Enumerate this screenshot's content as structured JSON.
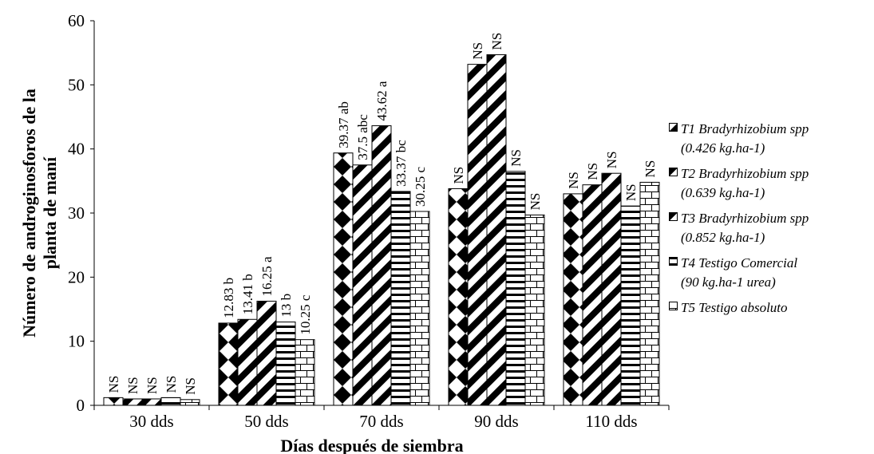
{
  "chart_data": {
    "type": "bar",
    "title": "",
    "xlabel": "Días después de siembra",
    "ylabel_lines": [
      "Número de androginosforos de la",
      "planta de maní"
    ],
    "ylim": [
      0,
      60
    ],
    "yticks": [
      "0",
      "10",
      "20",
      "30",
      "40",
      "50",
      "60"
    ],
    "categories": [
      "30 dds",
      "50 dds",
      "70 dds",
      "90 dds",
      "110 dds"
    ],
    "legend_position": "right",
    "series": [
      {
        "name_lines": [
          "T1 Bradyrhizobium spp",
          "(0.426 kg.ha-1)"
        ],
        "pattern": "diamonds",
        "values": [
          1.2,
          12.83,
          39.37,
          33.8,
          33.0
        ],
        "labels": [
          "NS",
          "12.83 b",
          "39.37 ab",
          "NS",
          "NS"
        ]
      },
      {
        "name_lines": [
          "T2 Bradyrhizobium spp",
          "(0.639 kg.ha-1)"
        ],
        "pattern": "wide-diag",
        "values": [
          1.0,
          13.41,
          37.5,
          53.2,
          34.4
        ],
        "labels": [
          "NS",
          "13.41 b",
          "37.5 abc",
          "NS",
          "NS"
        ]
      },
      {
        "name_lines": [
          "T3 Bradyrhizobium spp",
          "(0.852 kg.ha-1)"
        ],
        "pattern": "wide-diag",
        "values": [
          1.0,
          16.25,
          43.62,
          54.7,
          36.2
        ],
        "labels": [
          "NS",
          "16.25 a",
          "43.62 a",
          "NS",
          "NS"
        ]
      },
      {
        "name_lines": [
          "T4 Testigo Comercial",
          "(90 kg.ha-1 urea)"
        ],
        "pattern": "horizontal",
        "values": [
          1.2,
          13.0,
          33.37,
          36.5,
          31.1
        ],
        "labels": [
          "NS",
          "13 b",
          "33.37 bc",
          "NS",
          "NS"
        ]
      },
      {
        "name_lines": [
          "T5 Testigo absoluto"
        ],
        "pattern": "bricks",
        "values": [
          0.9,
          10.25,
          30.25,
          29.7,
          34.8
        ],
        "labels": [
          "NS",
          "10.25 c",
          "30.25 c",
          "NS",
          "NS"
        ]
      }
    ]
  }
}
